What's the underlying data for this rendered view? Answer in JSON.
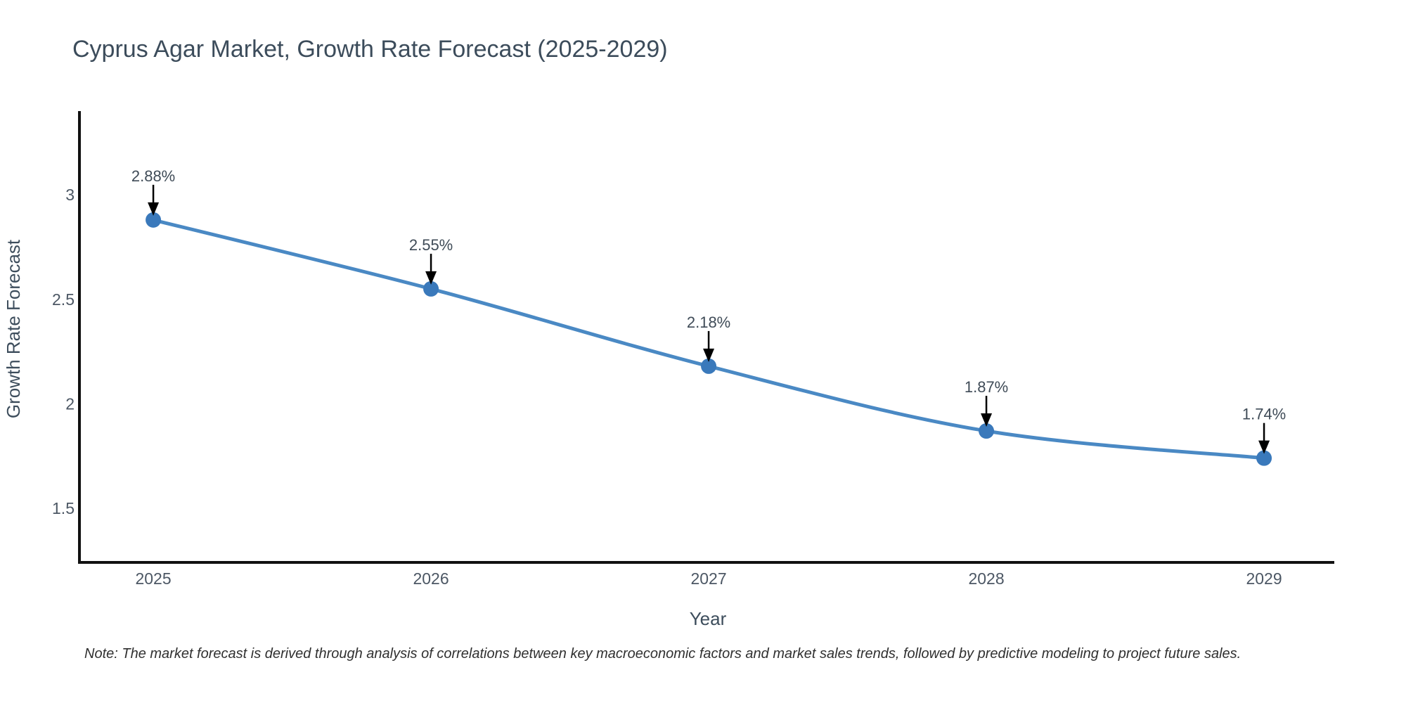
{
  "title": "Cyprus Agar Market, Growth Rate Forecast (2025-2029)",
  "note": "Note: The market forecast is derived through analysis of correlations between key macroeconomic factors and market sales trends, followed by predictive modeling to project future sales.",
  "chart_data": {
    "type": "line",
    "x": [
      2025,
      2026,
      2027,
      2028,
      2029
    ],
    "values": [
      2.88,
      2.55,
      2.18,
      1.87,
      1.74
    ],
    "point_labels": [
      "2.88%",
      "2.55%",
      "2.18%",
      "1.87%",
      "1.74%"
    ],
    "title": "Cyprus Agar Market, Growth Rate Forecast (2025-2029)",
    "xlabel": "Year",
    "ylabel": "Growth Rate Forecast",
    "xticks": [
      2025,
      2026,
      2027,
      2028,
      2029
    ],
    "xtick_labels": [
      "2025",
      "2026",
      "2027",
      "2028",
      "2029"
    ],
    "yticks": [
      3,
      2.5,
      2,
      1.5
    ],
    "ytick_labels": [
      "3",
      "2.5",
      "2",
      "1.5"
    ],
    "xlim": [
      2024.734,
      2029.253
    ],
    "ylim": [
      1.241,
      3.401
    ],
    "grid": false,
    "legend": null,
    "annotations_style": "value labels with downward black arrows above each marker",
    "colors": {
      "line": "#4a89c4",
      "marker": "#3a79bb",
      "axis": "#111111",
      "arrow": "#000000",
      "title_text": "#3c4c5b",
      "tick_text": "#4c5764",
      "note_text": "#303030"
    }
  }
}
